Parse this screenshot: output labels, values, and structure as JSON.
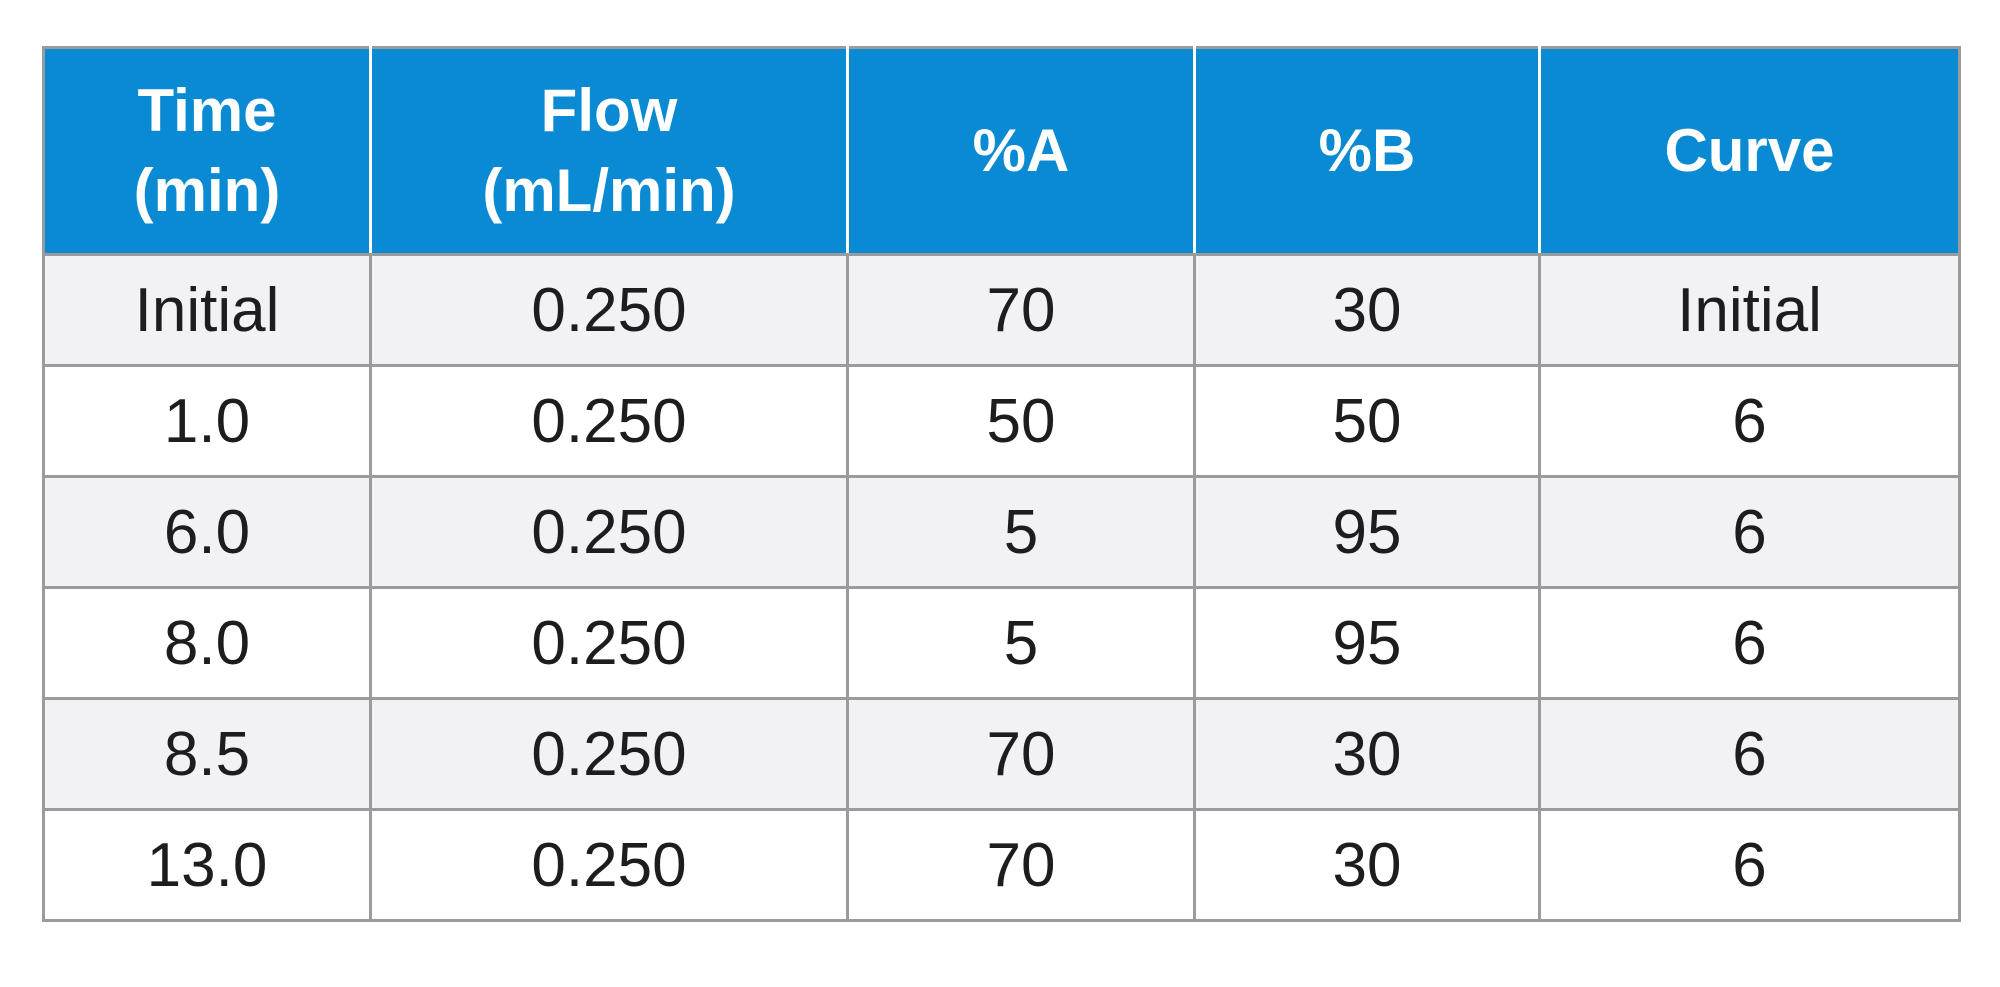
{
  "table": {
    "header": [
      [
        "Time",
        "(min)"
      ],
      [
        "Flow",
        "(mL/min)"
      ],
      [
        "%A"
      ],
      [
        "%B"
      ],
      [
        "Curve"
      ]
    ],
    "rows": [
      [
        "Initial",
        "0.250",
        "70",
        "30",
        "Initial"
      ],
      [
        "1.0",
        "0.250",
        "50",
        "50",
        "6"
      ],
      [
        "6.0",
        "0.250",
        "5",
        "95",
        "6"
      ],
      [
        "8.0",
        "0.250",
        "5",
        "95",
        "6"
      ],
      [
        "8.5",
        "0.250",
        "70",
        "30",
        "6"
      ],
      [
        "13.0",
        "0.250",
        "70",
        "30",
        "6"
      ]
    ]
  }
}
